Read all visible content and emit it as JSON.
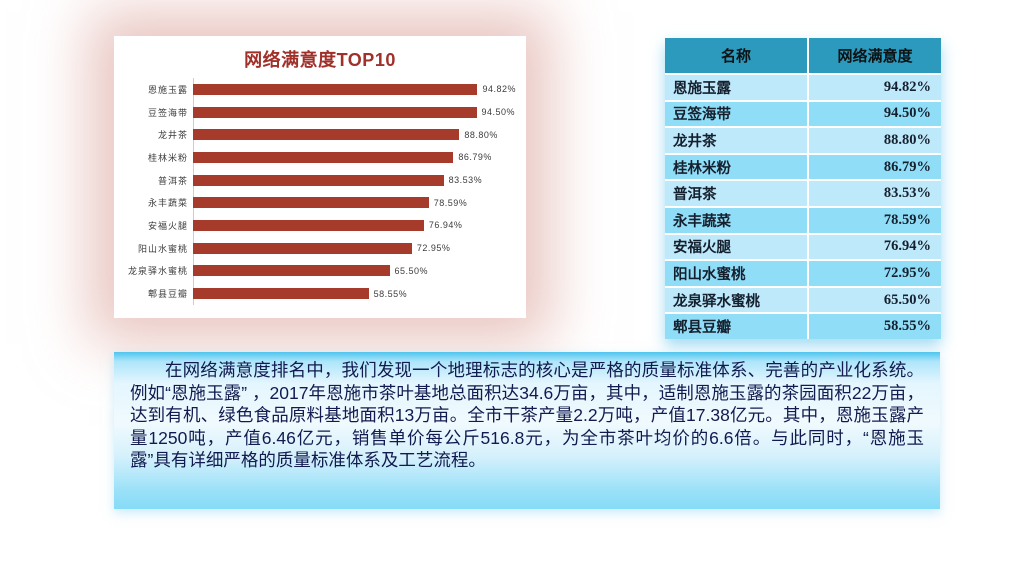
{
  "colors": {
    "bar": "#A63A2B",
    "chart_title_text": "#A0302A",
    "table_header_bg": "#2B9ABD",
    "table_row_light": "#BEE9FB",
    "table_row_dark": "#90DDF7",
    "table_text": "#15202E",
    "paragraph_text": "#121A4F",
    "chart_glow": "#DBA098"
  },
  "chart_data": {
    "type": "bar",
    "orientation": "horizontal",
    "title": "网络满意度TOP10",
    "categories": [
      "恩施玉露",
      "豆签海带",
      "龙井茶",
      "桂林米粉",
      "普洱茶",
      "永丰蔬菜",
      "安福火腿",
      "阳山水蜜桃",
      "龙泉驿水蜜桃",
      "郫县豆瓣"
    ],
    "values": [
      94.82,
      94.5,
      88.8,
      86.79,
      83.53,
      78.59,
      76.94,
      72.95,
      65.5,
      58.55
    ],
    "value_labels": [
      "94.82%",
      "94.50%",
      "88.80%",
      "86.79%",
      "83.53%",
      "78.59%",
      "76.94%",
      "72.95%",
      "65.50%",
      "58.55%"
    ],
    "xlabel": "",
    "ylabel": "",
    "xlim": [
      0,
      100
    ],
    "grid": false,
    "legend": false,
    "bar_color": "#A63A2B"
  },
  "table": {
    "headers": [
      "名称",
      "网络满意度"
    ],
    "rows": [
      [
        "恩施玉露",
        "94.82%"
      ],
      [
        "豆签海带",
        "94.50%"
      ],
      [
        "龙井茶",
        "88.80%"
      ],
      [
        "桂林米粉",
        "86.79%"
      ],
      [
        "普洱茶",
        "83.53%"
      ],
      [
        "永丰蔬菜",
        "78.59%"
      ],
      [
        "安福火腿",
        "76.94%"
      ],
      [
        "阳山水蜜桃",
        "72.95%"
      ],
      [
        "龙泉驿水蜜桃",
        "65.50%"
      ],
      [
        "郫县豆瓣",
        "58.55%"
      ]
    ]
  },
  "paragraph": {
    "text": "在网络满意度排名中，我们发现一个地理标志的核心是严格的质量标准体系、完善的产业化系统。例如“恩施玉露” ，2017年恩施市茶叶基地总面积达34.6万亩，其中，适制恩施玉露的茶园面积22万亩，达到有机、绿色食品原料基地面积13万亩。全市干茶产量2.2万吨，产值17.38亿元。其中，恩施玉露产量1250吨，产值6.46亿元，销售单价每公斤516.8元，为全市茶叶均价的6.6倍。与此同时，“恩施玉露”具有详细严格的质量标准体系及工艺流程。"
  }
}
